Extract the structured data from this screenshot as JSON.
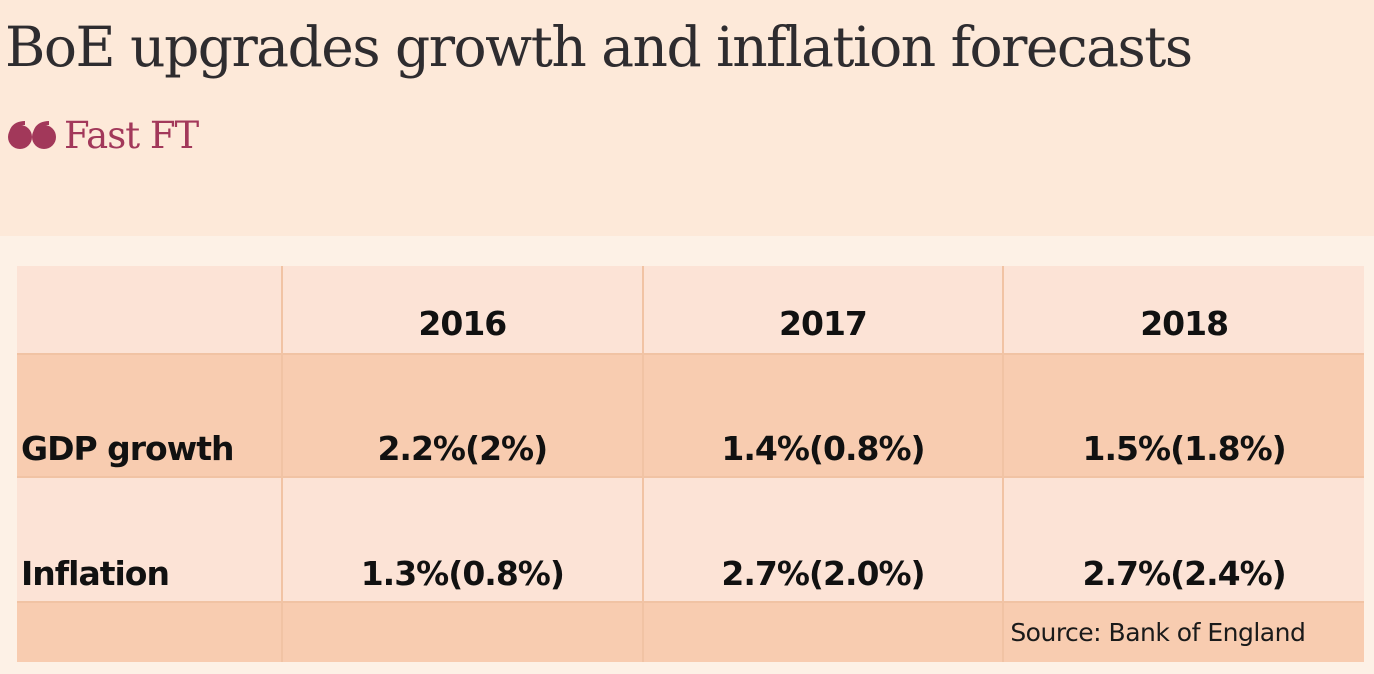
{
  "article": {
    "headline": "BoE upgrades growth and inflation forecasts",
    "brand": "Fast FT",
    "brand_icon": "quote-icon",
    "brand_color": "#a2385a"
  },
  "table": {
    "columns": [
      "",
      "2016",
      "2017",
      "2018"
    ],
    "rows": [
      {
        "label": "GDP growth",
        "values": [
          "2.2%(2%)",
          "1.4%(0.8%)",
          "1.5%(1.8%)"
        ]
      },
      {
        "label": "Inflation",
        "values": [
          "1.3%(0.8%)",
          "2.7%(2.0%)",
          "2.7%(2.4%)"
        ]
      }
    ],
    "source": "Source: Bank of England"
  }
}
